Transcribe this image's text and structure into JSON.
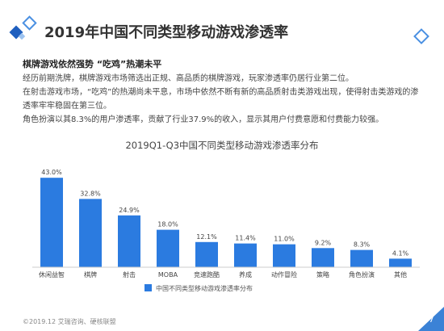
{
  "header": {
    "title": "2019年中国不同类型移动游戏渗透率"
  },
  "content": {
    "subtitle": "棋牌游戏依然强势 “吃鸡”热潮未平",
    "paragraphs": [
      "经历前期洗牌，棋牌游戏市场筛选出正规、高品质的棋牌游戏，玩家渗透率仍居行业第二位。",
      "在射击游戏市场，“吃鸡”的热潮尚未平息，市场中依然不断有新的高品质射击类游戏出现，使得射击类游戏的渗透率牢牢稳固在第三位。",
      "角色扮演以其8.3%的用户渗透率，贡献了行业37.9%的收入，显示其用户付费意愿和付费能力较强。"
    ]
  },
  "chart_data": {
    "type": "bar",
    "title": "2019Q1-Q3中国不同类型移动游戏渗透率分布",
    "categories": [
      "休闲益智",
      "棋牌",
      "射击",
      "MOBA",
      "竞速跑酷",
      "养成",
      "动作冒险",
      "策略",
      "角色扮演",
      "其他"
    ],
    "values": [
      43.0,
      32.8,
      24.9,
      18.0,
      12.1,
      11.4,
      11.0,
      9.2,
      8.3,
      4.1
    ],
    "value_labels": [
      "43.0%",
      "32.8%",
      "24.9%",
      "18.0%",
      "12.1%",
      "11.4%",
      "11.0%",
      "9.2%",
      "8.3%",
      "4.1%"
    ],
    "series": [
      {
        "name": "中国不同类型移动游戏渗透率分布",
        "values": [
          43.0,
          32.8,
          24.9,
          18.0,
          12.1,
          11.4,
          11.0,
          9.2,
          8.3,
          4.1
        ]
      }
    ],
    "ylim": [
      0,
      45
    ],
    "grid": false,
    "legend_position": "bottom",
    "colors": {
      "bar": "#2b7be0",
      "legend": "#2b7be0"
    }
  },
  "footer": {
    "source": "©2019.12 艾瑞咨询、硬核联盟",
    "page_number": "7"
  }
}
